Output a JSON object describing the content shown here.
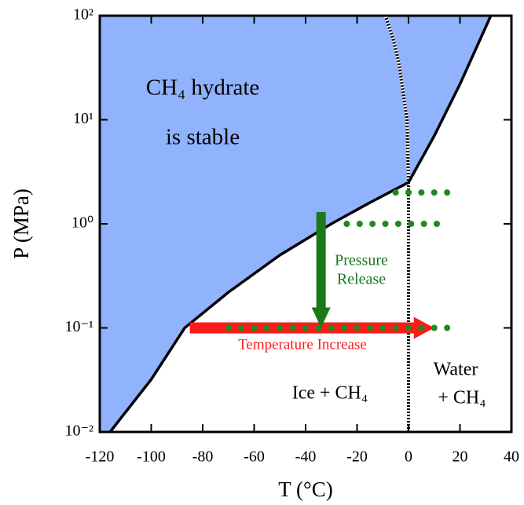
{
  "chart_data": {
    "type": "phase",
    "xlabel": "T (°C)",
    "ylabel": "P (MPa)",
    "xlim": [
      -120,
      40
    ],
    "ylim": [
      0.01,
      100
    ],
    "yscale": "log",
    "xticks": [
      -120,
      -100,
      -80,
      -60,
      -40,
      -20,
      0,
      20,
      40
    ],
    "yticks": [
      {
        "value": 0.01,
        "label": "10⁻²"
      },
      {
        "value": 0.1,
        "label": "10⁻¹"
      },
      {
        "value": 1,
        "label": "10⁰"
      },
      {
        "value": 10,
        "label": "10¹"
      },
      {
        "value": 100,
        "label": "10²"
      }
    ],
    "fill_color": "#91b2fc",
    "boundary": {
      "color": "#000000",
      "x": [
        -116,
        -100,
        -87,
        -70,
        -50,
        -30,
        -15,
        0,
        10,
        20,
        32
      ],
      "values": [
        0.01,
        0.032,
        0.1,
        0.22,
        0.5,
        1.0,
        1.6,
        2.5,
        7,
        22,
        100
      ]
    },
    "melting_line": {
      "color": "#000000",
      "x": [
        0,
        0,
        -0.6,
        -3.7,
        -6,
        -9
      ],
      "values": [
        0.01,
        2.5,
        10,
        35,
        60,
        100
      ]
    },
    "points": {
      "color": "#1e8a1e",
      "x": [
        -5,
        0,
        5,
        10,
        15,
        -24,
        -19,
        -14,
        -9,
        -4,
        1,
        6,
        11,
        -70,
        -65,
        -60,
        -55,
        -50,
        -45,
        -40,
        -35,
        -30,
        -25,
        -20,
        -15,
        -10,
        -5,
        0,
        5,
        10,
        15
      ],
      "values": [
        2,
        2,
        2,
        2,
        2,
        1,
        1,
        1,
        1,
        1,
        1,
        1,
        1,
        0.1,
        0.1,
        0.1,
        0.1,
        0.1,
        0.1,
        0.1,
        0.1,
        0.1,
        0.1,
        0.1,
        0.1,
        0.1,
        0.1,
        0.1,
        0.1,
        0.1,
        0.1
      ]
    },
    "arrows": [
      {
        "label": "Temperature Increase",
        "color": "#ff1a1a",
        "x": [
          -85,
          10
        ],
        "values": [
          0.1,
          0.1
        ]
      },
      {
        "label_lines": [
          "Pressure",
          "Release"
        ],
        "color": "#1a7a1a",
        "x": [
          -34,
          -34
        ],
        "values": [
          1.3,
          0.1
        ]
      }
    ],
    "regions": [
      "CH₄ hydrate",
      "is stable",
      "Ice + CH₄",
      "Water",
      "+ CH₄"
    ]
  }
}
